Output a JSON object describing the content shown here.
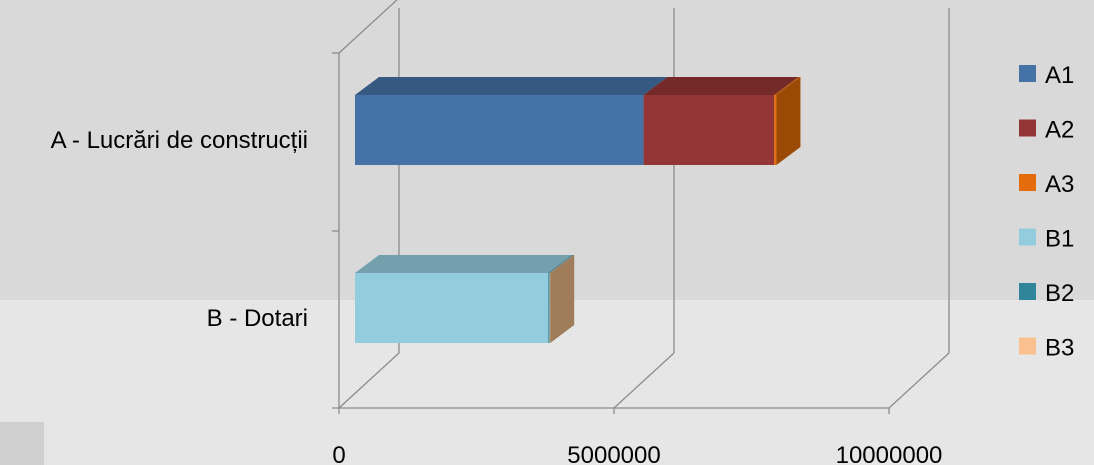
{
  "chart_data": {
    "type": "bar",
    "orientation": "horizontal",
    "stacked": true,
    "three_d": true,
    "categories": [
      "A - Lucrări de construcții",
      "B - Dotari"
    ],
    "series": [
      {
        "name": "A1",
        "values": [
          5300000,
          0
        ],
        "color": "#4572A7"
      },
      {
        "name": "A2",
        "values": [
          2400000,
          0
        ],
        "color": "#943635"
      },
      {
        "name": "A3",
        "values": [
          40000,
          0
        ],
        "color": "#E46C0A"
      },
      {
        "name": "B1",
        "values": [
          0,
          3550000
        ],
        "color": "#93CDDD"
      },
      {
        "name": "B2",
        "values": [
          0,
          25000
        ],
        "color": "#31859B"
      },
      {
        "name": "B3",
        "values": [
          0,
          10000
        ],
        "color": "#FAC090"
      }
    ],
    "xlim": [
      0,
      10000000
    ],
    "xticks": [
      "0",
      "5000000",
      "10000000"
    ],
    "grid": true,
    "legend_position": "right",
    "background_colors": {
      "upper": "#D9D9D9",
      "lower": "#E6E6E6"
    },
    "gridline_color": "#8C8C8C"
  }
}
